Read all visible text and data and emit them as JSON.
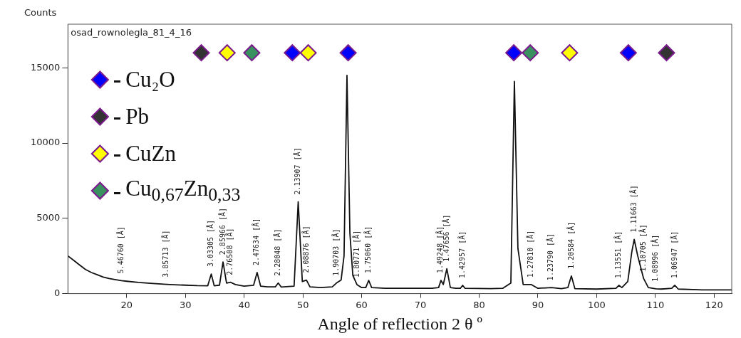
{
  "chart_data": {
    "type": "line",
    "title": "osad_rownolegla_81_4_16",
    "xlabel": "Angle of reflection 2 θ º",
    "ylabel": "Counts",
    "xlim": [
      10,
      123
    ],
    "xticks": [
      20,
      30,
      40,
      50,
      60,
      70,
      80,
      90,
      100,
      110,
      120
    ],
    "ylim": [
      0,
      17900
    ],
    "yticks": [
      0,
      5000,
      10000,
      15000
    ],
    "grid": false,
    "legend": "top left",
    "series": [
      {
        "type": "line",
        "color": "#111111",
        "marker": "none",
        "x": [
          10,
          11,
          12,
          13,
          14,
          15,
          16,
          17,
          18,
          19.1,
          20,
          22,
          24,
          26.8,
          28,
          30,
          32,
          33.8,
          34.4,
          34.9,
          35.8,
          36.4,
          37.0,
          37.7,
          38.5,
          40,
          41.6,
          42.2,
          42.8,
          44,
          45.3,
          45.8,
          46.3,
          48.5,
          49.2,
          49.9,
          50.6,
          51.2,
          53,
          55,
          55.7,
          56.5,
          57.0,
          57.5,
          58.0,
          58.5,
          59.2,
          60,
          60.7,
          61.2,
          61.7,
          64,
          68,
          72,
          73.1,
          73.5,
          73.9,
          74.5,
          75.1,
          76,
          76.8,
          77.2,
          77.6,
          82,
          84,
          85.4,
          86.0,
          86.6,
          87.5,
          88.9,
          90,
          92.3,
          94,
          95.1,
          95.7,
          96.3,
          100,
          103.3,
          103.8,
          104.3,
          105.3,
          106.0,
          106.4,
          107.0,
          108.0,
          108.8,
          110.1,
          111,
          112.8,
          113.3,
          113.9,
          118,
          123
        ],
        "values": [
          2500,
          2200,
          1900,
          1600,
          1400,
          1250,
          1100,
          1000,
          930,
          860,
          820,
          740,
          680,
          610,
          590,
          560,
          530,
          520,
          1300,
          520,
          560,
          2100,
          700,
          750,
          600,
          500,
          550,
          1400,
          500,
          450,
          450,
          700,
          440,
          500,
          6100,
          800,
          900,
          450,
          400,
          450,
          700,
          900,
          2500,
          14500,
          4000,
          1200,
          600,
          400,
          400,
          880,
          400,
          350,
          350,
          350,
          400,
          880,
          600,
          1650,
          400,
          350,
          350,
          550,
          350,
          330,
          350,
          700,
          14100,
          3000,
          600,
          600,
          350,
          400,
          330,
          400,
          1170,
          330,
          300,
          350,
          550,
          400,
          800,
          2800,
          3600,
          2500,
          1000,
          400,
          320,
          300,
          350,
          550,
          300,
          250,
          250
        ]
      },
      {
        "type": "scatter",
        "name": "Cu₂O",
        "color": "#0000ff",
        "marker": "diamond",
        "x": [
          48.2,
          57.7,
          85.9,
          105.4
        ],
        "values": [
          16000,
          16000,
          16000,
          16000
        ]
      },
      {
        "type": "scatter",
        "name": "Pb",
        "color": "#333333",
        "marker": "diamond",
        "x": [
          32.7,
          111.9
        ],
        "values": [
          16000,
          16000
        ]
      },
      {
        "type": "scatter",
        "name": "CuZn",
        "color": "#ffff00",
        "marker": "diamond",
        "x": [
          37.1,
          50.9,
          95.4
        ],
        "values": [
          16000,
          16000,
          16000
        ]
      },
      {
        "type": "scatter",
        "name": "Cu$_{0,67}$Zn$_{0,33}$",
        "color": "#3a9160",
        "marker": "diamond",
        "x": [
          41.3,
          88.7
        ],
        "values": [
          16000,
          16000
        ]
      }
    ],
    "annotations": [
      {
        "text": "5.46760 [Å]",
        "x": 19.1,
        "y": 860
      },
      {
        "text": "3.85713 [Å]",
        "x": 26.8,
        "y": 610
      },
      {
        "text": "3.03305 [Å]",
        "x": 34.4,
        "y": 1300
      },
      {
        "text": "2.85966 [Å]",
        "x": 36.4,
        "y": 2100
      },
      {
        "text": "2.76508 [Å]",
        "x": 37.7,
        "y": 750
      },
      {
        "text": "2.47634 [Å]",
        "x": 42.2,
        "y": 1400
      },
      {
        "text": "2.28048 [Å]",
        "x": 45.8,
        "y": 700
      },
      {
        "text": "2.13907 [Å]",
        "x": 49.2,
        "y": 6100
      },
      {
        "text": "2.08876 [Å]",
        "x": 50.6,
        "y": 900
      },
      {
        "text": "1.90703 [Å]",
        "x": 55.7,
        "y": 700
      },
      {
        "text": "1.80771 [Å]",
        "x": 59.2,
        "y": 600
      },
      {
        "text": "1.75060 [Å]",
        "x": 61.2,
        "y": 880
      },
      {
        "text": "1.49248 [Å]",
        "x": 73.5,
        "y": 880
      },
      {
        "text": "1.47656 [Å]",
        "x": 74.5,
        "y": 1650
      },
      {
        "text": "1.42957 [Å]",
        "x": 77.2,
        "y": 550
      },
      {
        "text": "1.27810 [Å]",
        "x": 88.9,
        "y": 600
      },
      {
        "text": "1.23790 [Å]",
        "x": 92.3,
        "y": 400
      },
      {
        "text": "1.20584 [Å]",
        "x": 95.7,
        "y": 1170
      },
      {
        "text": "1.13551 [Å]",
        "x": 103.8,
        "y": 550
      },
      {
        "text": "1.11663 [Å]",
        "x": 106.4,
        "y": 3600
      },
      {
        "text": "1.10705 [Å]",
        "x": 108.0,
        "y": 1000
      },
      {
        "text": "1.08996 [Å]",
        "x": 110.1,
        "y": 320
      },
      {
        "text": "1.06947 [Å]",
        "x": 113.3,
        "y": 550
      }
    ]
  }
}
